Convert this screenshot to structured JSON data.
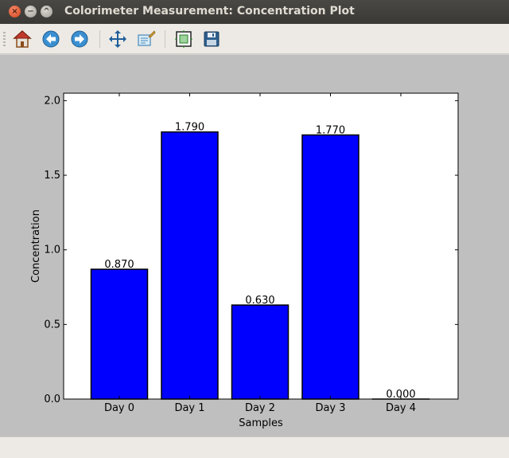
{
  "window": {
    "title": "Colorimeter Measurement: Concentration Plot",
    "controls": {
      "close": "×",
      "minimize": "−",
      "maximize": "^"
    }
  },
  "toolbar": {
    "buttons": [
      {
        "name": "home",
        "icon": "home-icon"
      },
      {
        "name": "back",
        "icon": "back-arrow-icon"
      },
      {
        "name": "forward",
        "icon": "forward-arrow-icon"
      },
      {
        "name": "pan",
        "icon": "move-icon"
      },
      {
        "name": "zoom",
        "icon": "zoom-rect-icon"
      },
      {
        "name": "subplots",
        "icon": "subplots-icon"
      },
      {
        "name": "save",
        "icon": "floppy-disk-icon"
      }
    ]
  },
  "colors": {
    "bar": "#0000ff",
    "edge": "#000000",
    "figure_bg": "#bfbfbf",
    "axes_bg": "#ffffff"
  },
  "chart_data": {
    "type": "bar",
    "categories": [
      "Day 0",
      "Day 1",
      "Day 2",
      "Day 3",
      "Day 4"
    ],
    "values": [
      0.87,
      1.79,
      0.63,
      1.77,
      0.0
    ],
    "data_labels": [
      "0.870",
      "1.790",
      "0.630",
      "1.770",
      "0.000"
    ],
    "xlabel": "Samples",
    "ylabel": "Concentration",
    "ylim": [
      0,
      2.05
    ],
    "yticks": [
      0.0,
      0.5,
      1.0,
      1.5,
      2.0
    ],
    "ytick_labels": [
      "0.0",
      "0.5",
      "1.0",
      "1.5",
      "2.0"
    ],
    "grid": false
  }
}
